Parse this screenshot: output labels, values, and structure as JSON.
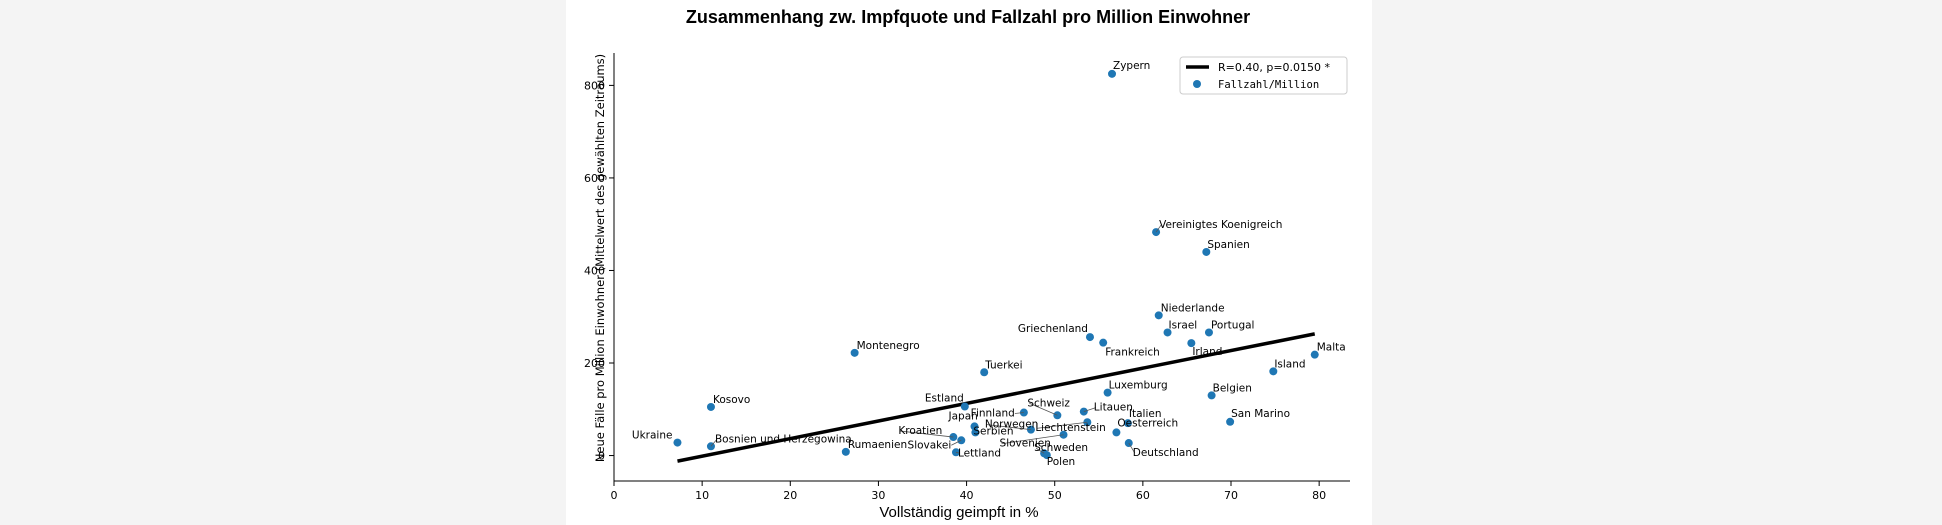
{
  "chart_data": {
    "type": "scatter",
    "title": "Zusammenhang zw. Impfquote und Fallzahl pro Million Einwohner",
    "xlabel": "Vollständig geimpft in %",
    "ylabel": "Neue Fälle pro Million Einwohner (Mittelwert des gewählten Zeitraums)",
    "xlim": [
      0,
      83.5
    ],
    "ylim": [
      -55,
      870
    ],
    "xticks": [
      0,
      10,
      20,
      30,
      40,
      50,
      60,
      70,
      80
    ],
    "yticks": [
      0,
      200,
      400,
      600,
      800
    ],
    "grid": false,
    "legend_placement": "top-right",
    "colors": {
      "points": "#1f77b4",
      "regression": "#000000"
    },
    "regression": {
      "label": "R=0.40, p=0.0150 *",
      "x": [
        7.2,
        79.5
      ],
      "y": [
        -12,
        263
      ]
    },
    "series": [
      {
        "name": "Fallzahl/Million",
        "points": [
          {
            "country": "Zypern",
            "x": 56.5,
            "y": 825
          },
          {
            "country": "Vereinigtes Koenigreich",
            "x": 61.5,
            "y": 483
          },
          {
            "country": "Spanien",
            "x": 67.2,
            "y": 440
          },
          {
            "country": "Niederlande",
            "x": 61.8,
            "y": 303
          },
          {
            "country": "Israel",
            "x": 62.8,
            "y": 266
          },
          {
            "country": "Portugal",
            "x": 67.5,
            "y": 266
          },
          {
            "country": "Griechenland",
            "x": 54.0,
            "y": 256
          },
          {
            "country": "Frankreich",
            "x": 55.5,
            "y": 244
          },
          {
            "country": "Irland",
            "x": 65.5,
            "y": 243
          },
          {
            "country": "Malta",
            "x": 79.5,
            "y": 218
          },
          {
            "country": "Island",
            "x": 74.8,
            "y": 182
          },
          {
            "country": "Montenegro",
            "x": 27.3,
            "y": 222
          },
          {
            "country": "Tuerkei",
            "x": 42.0,
            "y": 180
          },
          {
            "country": "Luxemburg",
            "x": 56.0,
            "y": 136
          },
          {
            "country": "Belgien",
            "x": 67.8,
            "y": 130
          },
          {
            "country": "Kosovo",
            "x": 11.0,
            "y": 105
          },
          {
            "country": "Estland",
            "x": 39.8,
            "y": 106
          },
          {
            "country": "Finnland",
            "x": 46.5,
            "y": 93
          },
          {
            "country": "Schweiz",
            "x": 50.3,
            "y": 87
          },
          {
            "country": "Litauen",
            "x": 53.3,
            "y": 95
          },
          {
            "country": "Liechtenstein",
            "x": 53.7,
            "y": 72
          },
          {
            "country": "Italien",
            "x": 58.3,
            "y": 70
          },
          {
            "country": "San Marino",
            "x": 69.9,
            "y": 73
          },
          {
            "country": "Norwegen",
            "x": 47.3,
            "y": 56
          },
          {
            "country": "Japan",
            "x": 40.9,
            "y": 63
          },
          {
            "country": "Serbien",
            "x": 41.0,
            "y": 50
          },
          {
            "country": "Oesterreich",
            "x": 57.0,
            "y": 50
          },
          {
            "country": "Slovenien",
            "x": 51.0,
            "y": 45
          },
          {
            "country": "Kroatien",
            "x": 38.5,
            "y": 40
          },
          {
            "country": "Slovakei",
            "x": 39.4,
            "y": 33
          },
          {
            "country": "Deutschland",
            "x": 58.4,
            "y": 27
          },
          {
            "country": "Ukraine",
            "x": 7.2,
            "y": 28
          },
          {
            "country": "Bosnien und Herzegowina",
            "x": 11.0,
            "y": 20
          },
          {
            "country": "Rumaenien",
            "x": 26.3,
            "y": 8
          },
          {
            "country": "Lettland",
            "x": 38.8,
            "y": 7
          },
          {
            "country": "Schweden",
            "x": 48.8,
            "y": 5
          },
          {
            "country": "Polen",
            "x": 49.1,
            "y": 1
          }
        ]
      }
    ]
  }
}
